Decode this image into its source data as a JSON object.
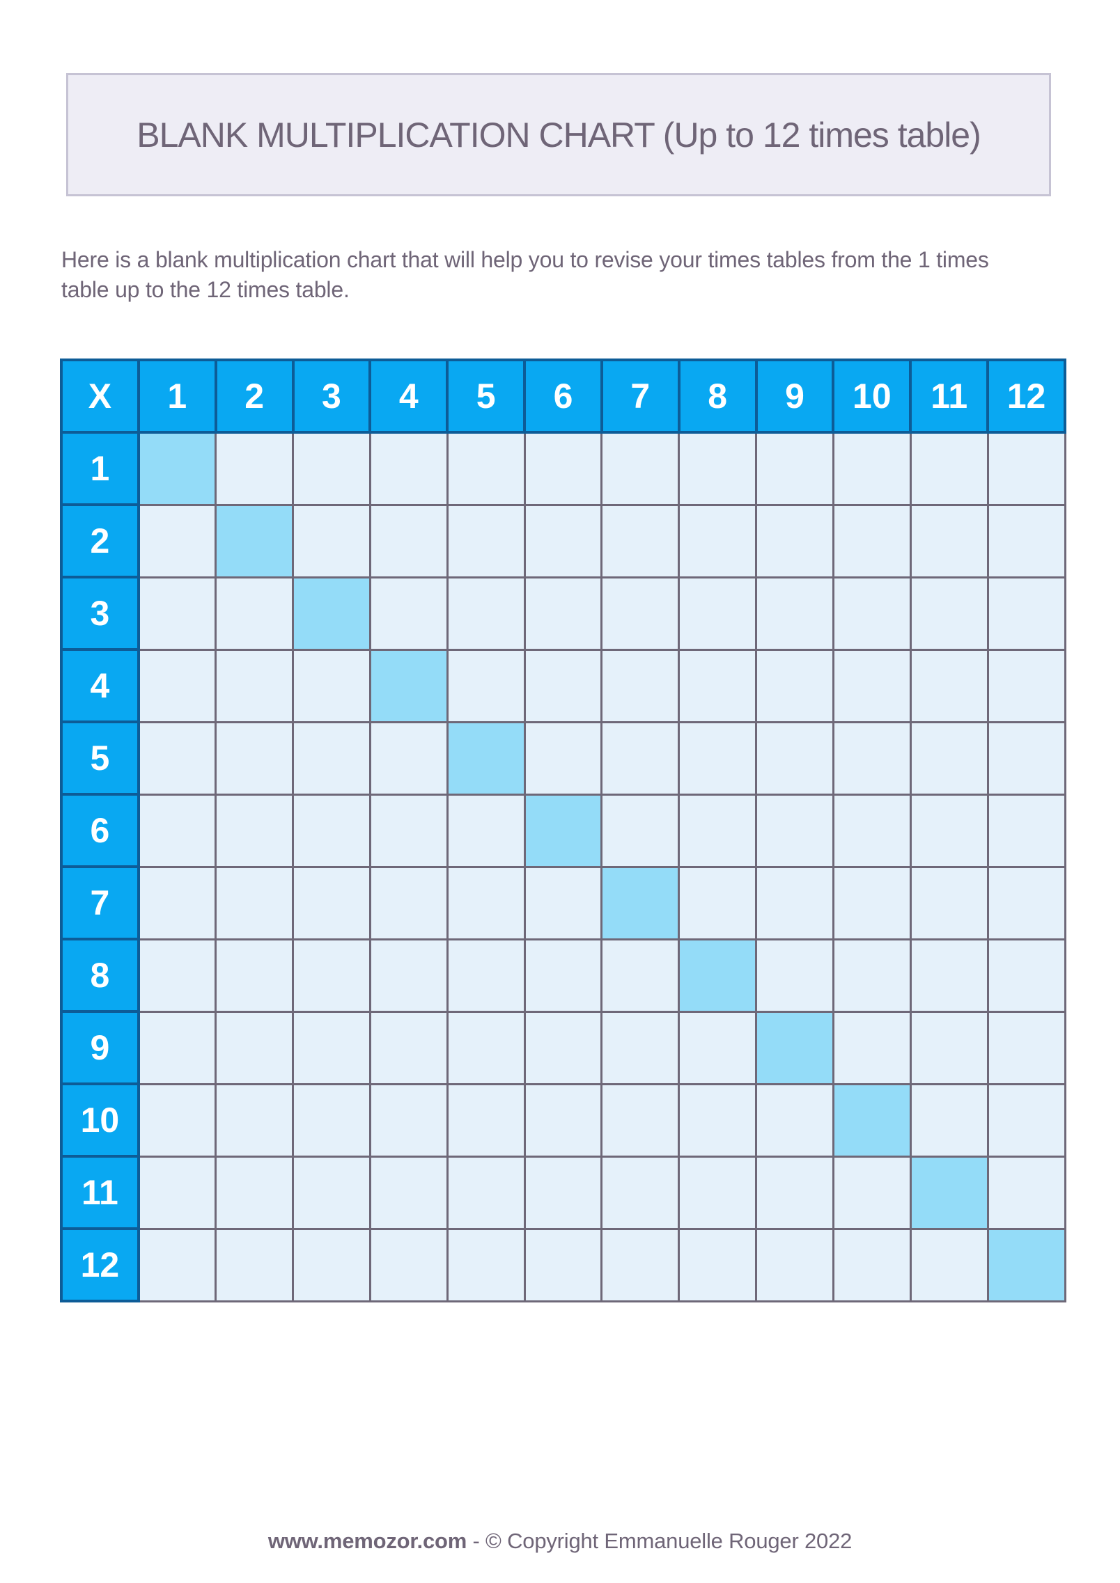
{
  "title": "BLANK MULTIPLICATION CHART (Up to 12 times table)",
  "intro": {
    "line1": "Here is a blank multiplication chart that will help you to revise your times tables from the 1 times",
    "line2": "table up to the 12 times table."
  },
  "table": {
    "corner_label": "X",
    "column_headers": [
      "1",
      "2",
      "3",
      "4",
      "5",
      "6",
      "7",
      "8",
      "9",
      "10",
      "11",
      "12"
    ],
    "row_headers": [
      "1",
      "2",
      "3",
      "4",
      "5",
      "6",
      "7",
      "8",
      "9",
      "10",
      "11",
      "12"
    ],
    "cells_blank": true,
    "highlighted_cells": "diagonal where row number equals column number",
    "colors": {
      "header_bg": "#09a8f2",
      "header_border": "#0d5c97",
      "header_text": "#ffffff",
      "cell_bg": "#e5f1fa",
      "diagonal_cell_bg": "#94dcf8",
      "grid_line": "#6e6878"
    }
  },
  "footer": {
    "site": "www.memozor.com",
    "separator": " - ",
    "copyright": "© Copyright Emmanuelle Rouger 2022"
  },
  "colors": {
    "page_bg": "#ffffff",
    "title_box_bg": "#eeedf5",
    "title_box_border": "#c6c3d4",
    "text_purple": "#6f6577"
  }
}
